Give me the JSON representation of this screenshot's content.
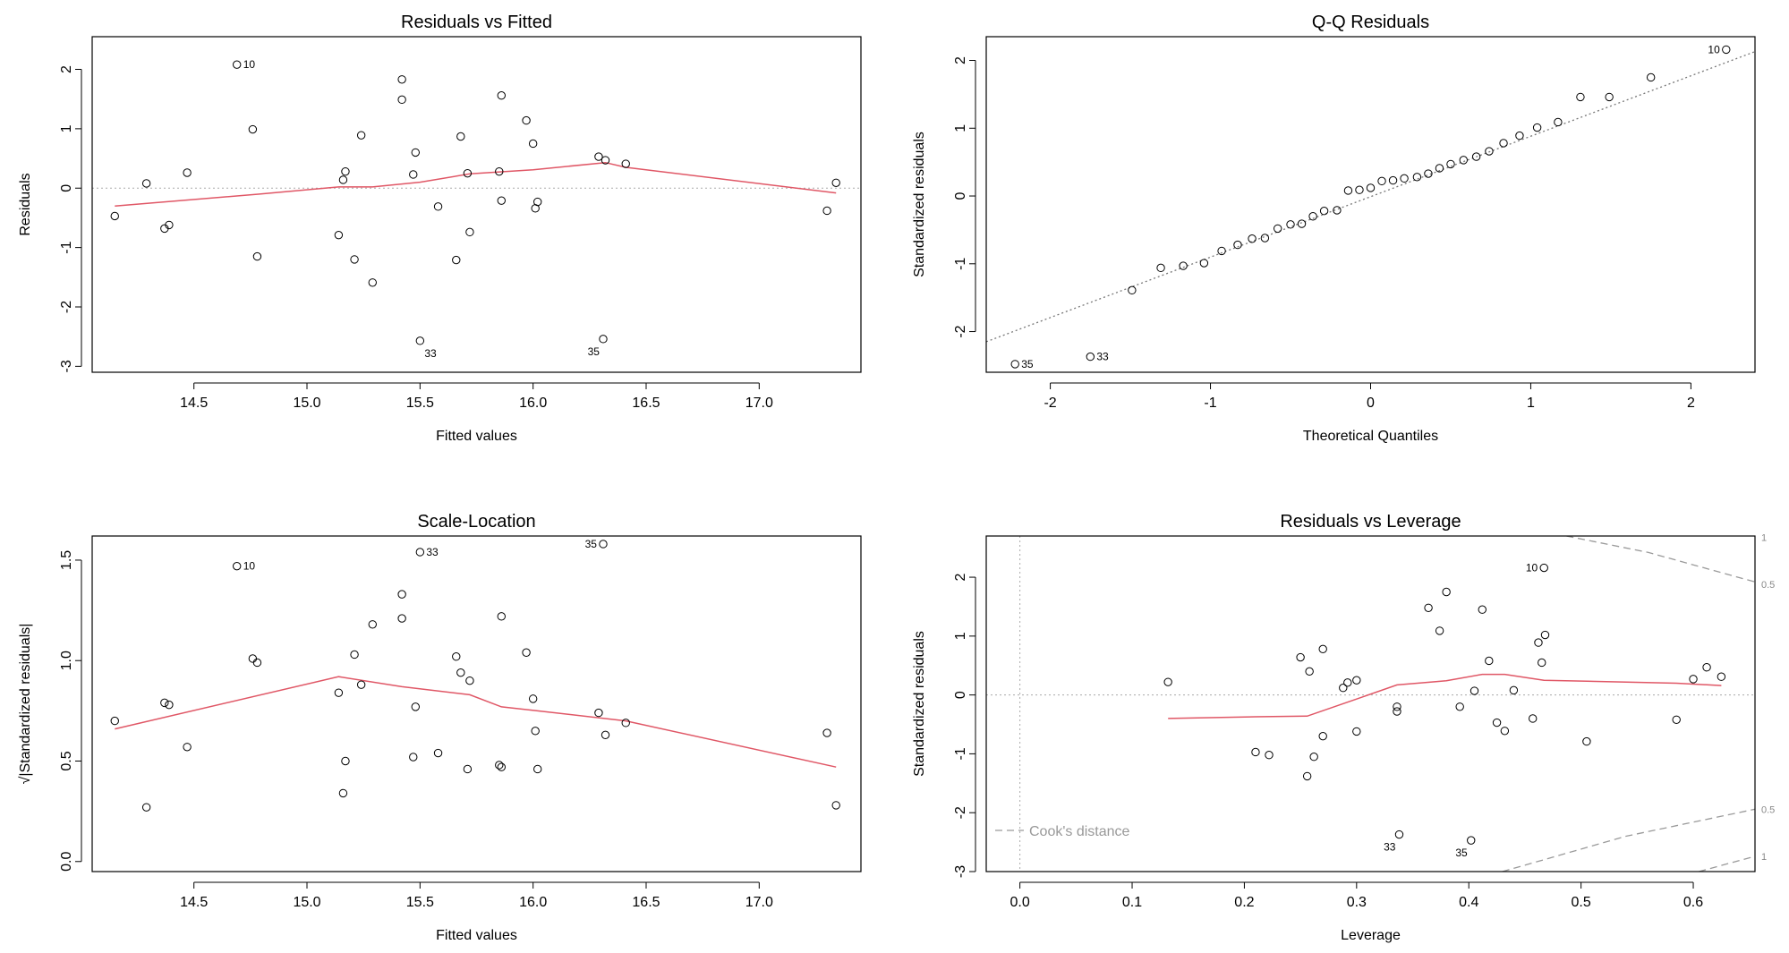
{
  "chart_data": [
    {
      "type": "scatter",
      "title": "Residuals vs Fitted",
      "xlabel": "Fitted values",
      "ylabel": "Residuals",
      "xlim": [
        14.05,
        17.45
      ],
      "ylim": [
        -3.1,
        2.55
      ],
      "xticks": [
        14.5,
        15.0,
        15.5,
        16.0,
        16.5,
        17.0
      ],
      "xtick_labels": [
        "14.5",
        "15.0",
        "15.5",
        "16.0",
        "16.5",
        "17.0"
      ],
      "yticks": [
        -3,
        -2,
        -1,
        0,
        1,
        2
      ],
      "ytick_labels": [
        "-3",
        "-2",
        "-1",
        "0",
        "1",
        "2"
      ],
      "refline_y": 0,
      "points": [
        [
          14.15,
          -0.47
        ],
        [
          14.29,
          0.08
        ],
        [
          14.37,
          -0.68
        ],
        [
          14.39,
          -0.62
        ],
        [
          14.47,
          0.26
        ],
        [
          14.69,
          2.08
        ],
        [
          14.76,
          0.99
        ],
        [
          14.78,
          -1.15
        ],
        [
          15.14,
          -0.79
        ],
        [
          15.16,
          0.14
        ],
        [
          15.17,
          0.28
        ],
        [
          15.21,
          -1.2
        ],
        [
          15.24,
          0.89
        ],
        [
          15.29,
          -1.59
        ],
        [
          15.42,
          1.83
        ],
        [
          15.42,
          1.49
        ],
        [
          15.47,
          0.23
        ],
        [
          15.48,
          0.6
        ],
        [
          15.5,
          -2.57
        ],
        [
          15.58,
          -0.31
        ],
        [
          15.66,
          -1.21
        ],
        [
          15.68,
          0.87
        ],
        [
          15.71,
          0.25
        ],
        [
          15.72,
          -0.74
        ],
        [
          15.85,
          0.28
        ],
        [
          15.86,
          1.56
        ],
        [
          15.86,
          -0.21
        ],
        [
          15.97,
          1.14
        ],
        [
          16.0,
          0.75
        ],
        [
          16.01,
          -0.34
        ],
        [
          16.02,
          -0.23
        ],
        [
          16.29,
          0.53
        ],
        [
          16.32,
          0.47
        ],
        [
          16.31,
          -2.54
        ],
        [
          16.41,
          0.41
        ],
        [
          17.3,
          -0.38
        ],
        [
          17.34,
          0.09
        ]
      ],
      "point_labels": [
        {
          "index": 5,
          "text": "10",
          "pos": "right"
        },
        {
          "index": 18,
          "text": "33",
          "pos": "below-right"
        },
        {
          "index": 33,
          "text": "35",
          "pos": "below-left"
        }
      ],
      "smooth": [
        [
          14.15,
          -0.3
        ],
        [
          14.79,
          -0.1
        ],
        [
          15.14,
          0.02
        ],
        [
          15.29,
          0.02
        ],
        [
          15.5,
          0.1
        ],
        [
          15.72,
          0.24
        ],
        [
          16.0,
          0.31
        ],
        [
          16.32,
          0.43
        ],
        [
          16.41,
          0.35
        ],
        [
          17.34,
          -0.08
        ]
      ]
    },
    {
      "type": "scatter",
      "title": "Q-Q Residuals",
      "xlabel": "Theoretical Quantiles",
      "ylabel": "Standardized residuals",
      "xlim": [
        -2.4,
        2.4
      ],
      "ylim": [
        -2.6,
        2.35
      ],
      "xticks": [
        -2,
        -1,
        0,
        1,
        2
      ],
      "xtick_labels": [
        "-2",
        "-1",
        "0",
        "1",
        "2"
      ],
      "yticks": [
        -2,
        -1,
        0,
        1,
        2
      ],
      "ytick_labels": [
        "-2",
        "-1",
        "0",
        "1",
        "2"
      ],
      "qq_line": [
        [
          -2.4,
          -2.15
        ],
        [
          2.4,
          2.13
        ]
      ],
      "points": [
        [
          -2.22,
          -2.48
        ],
        [
          -1.75,
          -2.37
        ],
        [
          -1.49,
          -1.39
        ],
        [
          -1.31,
          -1.06
        ],
        [
          -1.17,
          -1.03
        ],
        [
          -1.04,
          -0.99
        ],
        [
          -0.93,
          -0.81
        ],
        [
          -0.83,
          -0.72
        ],
        [
          -0.74,
          -0.63
        ],
        [
          -0.66,
          -0.62
        ],
        [
          -0.58,
          -0.48
        ],
        [
          -0.5,
          -0.42
        ],
        [
          -0.43,
          -0.41
        ],
        [
          -0.36,
          -0.3
        ],
        [
          -0.29,
          -0.22
        ],
        [
          -0.21,
          -0.21
        ],
        [
          -0.14,
          0.08
        ],
        [
          -0.07,
          0.09
        ],
        [
          0.0,
          0.12
        ],
        [
          0.07,
          0.22
        ],
        [
          0.14,
          0.23
        ],
        [
          0.21,
          0.26
        ],
        [
          0.29,
          0.28
        ],
        [
          0.36,
          0.33
        ],
        [
          0.43,
          0.41
        ],
        [
          0.5,
          0.47
        ],
        [
          0.58,
          0.53
        ],
        [
          0.66,
          0.58
        ],
        [
          0.74,
          0.66
        ],
        [
          0.83,
          0.78
        ],
        [
          0.93,
          0.89
        ],
        [
          1.04,
          1.01
        ],
        [
          1.17,
          1.09
        ],
        [
          1.31,
          1.46
        ],
        [
          1.49,
          1.46
        ],
        [
          1.75,
          1.75
        ],
        [
          2.22,
          2.16
        ]
      ],
      "point_labels": [
        {
          "index": 36,
          "text": "10",
          "pos": "left"
        },
        {
          "index": 0,
          "text": "35",
          "pos": "right"
        },
        {
          "index": 1,
          "text": "33",
          "pos": "right"
        }
      ]
    },
    {
      "type": "scatter",
      "title": "Scale-Location",
      "xlabel": "Fitted values",
      "ylabel": "√|Standardized residuals|",
      "xlim": [
        14.05,
        17.45
      ],
      "ylim": [
        -0.05,
        1.62
      ],
      "xticks": [
        14.5,
        15.0,
        15.5,
        16.0,
        16.5,
        17.0
      ],
      "xtick_labels": [
        "14.5",
        "15.0",
        "15.5",
        "16.0",
        "16.5",
        "17.0"
      ],
      "yticks": [
        0.0,
        0.5,
        1.0,
        1.5
      ],
      "ytick_labels": [
        "0.0",
        "0.5",
        "1.0",
        "1.5"
      ],
      "points": [
        [
          14.15,
          0.7
        ],
        [
          14.29,
          0.27
        ],
        [
          14.37,
          0.79
        ],
        [
          14.39,
          0.78
        ],
        [
          14.47,
          0.57
        ],
        [
          14.69,
          1.47
        ],
        [
          14.76,
          1.01
        ],
        [
          14.78,
          0.99
        ],
        [
          15.14,
          0.84
        ],
        [
          15.16,
          0.34
        ],
        [
          15.17,
          0.5
        ],
        [
          15.21,
          1.03
        ],
        [
          15.24,
          0.88
        ],
        [
          15.29,
          1.18
        ],
        [
          15.42,
          1.33
        ],
        [
          15.42,
          1.21
        ],
        [
          15.47,
          0.52
        ],
        [
          15.48,
          0.77
        ],
        [
          15.5,
          1.54
        ],
        [
          15.58,
          0.54
        ],
        [
          15.66,
          1.02
        ],
        [
          15.68,
          0.94
        ],
        [
          15.71,
          0.46
        ],
        [
          15.72,
          0.9
        ],
        [
          15.85,
          0.48
        ],
        [
          15.86,
          1.22
        ],
        [
          15.86,
          0.47
        ],
        [
          15.97,
          1.04
        ],
        [
          16.0,
          0.81
        ],
        [
          16.01,
          0.65
        ],
        [
          16.02,
          0.46
        ],
        [
          16.29,
          0.74
        ],
        [
          16.32,
          0.63
        ],
        [
          16.31,
          1.58
        ],
        [
          16.41,
          0.69
        ],
        [
          17.3,
          0.64
        ],
        [
          17.34,
          0.28
        ]
      ],
      "point_labels": [
        {
          "index": 5,
          "text": "10",
          "pos": "right"
        },
        {
          "index": 18,
          "text": "33",
          "pos": "right"
        },
        {
          "index": 33,
          "text": "35",
          "pos": "left"
        }
      ],
      "smooth": [
        [
          14.15,
          0.66
        ],
        [
          15.14,
          0.92
        ],
        [
          15.42,
          0.87
        ],
        [
          15.72,
          0.83
        ],
        [
          15.86,
          0.77
        ],
        [
          16.02,
          0.75
        ],
        [
          16.41,
          0.7
        ],
        [
          17.34,
          0.47
        ]
      ]
    },
    {
      "type": "scatter",
      "title": "Residuals vs Leverage",
      "xlabel": "Leverage",
      "ylabel": "Standardized residuals",
      "xlim": [
        -0.03,
        0.655
      ],
      "ylim": [
        -3.0,
        2.7
      ],
      "xticks": [
        0.0,
        0.1,
        0.2,
        0.3,
        0.4,
        0.5,
        0.6
      ],
      "xtick_labels": [
        "0.0",
        "0.1",
        "0.2",
        "0.3",
        "0.4",
        "0.5",
        "0.6"
      ],
      "yticks": [
        -3,
        -2,
        -1,
        0,
        1,
        2
      ],
      "ytick_labels": [
        "-3",
        "-2",
        "-1",
        "0",
        "1",
        "2"
      ],
      "refline_y": 0,
      "refline_x": 0,
      "points": [
        [
          0.132,
          0.22
        ],
        [
          0.21,
          -0.97
        ],
        [
          0.222,
          -1.02
        ],
        [
          0.25,
          0.64
        ],
        [
          0.258,
          0.4
        ],
        [
          0.256,
          -1.38
        ],
        [
          0.262,
          -1.05
        ],
        [
          0.27,
          0.78
        ],
        [
          0.27,
          -0.7
        ],
        [
          0.288,
          0.12
        ],
        [
          0.292,
          0.21
        ],
        [
          0.3,
          0.25
        ],
        [
          0.3,
          -0.62
        ],
        [
          0.336,
          -0.2
        ],
        [
          0.336,
          -0.28
        ],
        [
          0.338,
          -2.37
        ],
        [
          0.364,
          1.48
        ],
        [
          0.374,
          1.09
        ],
        [
          0.38,
          1.75
        ],
        [
          0.392,
          -0.2
        ],
        [
          0.402,
          -2.47
        ],
        [
          0.405,
          0.07
        ],
        [
          0.412,
          1.45
        ],
        [
          0.418,
          0.58
        ],
        [
          0.425,
          -0.47
        ],
        [
          0.432,
          -0.61
        ],
        [
          0.44,
          0.08
        ],
        [
          0.457,
          -0.4
        ],
        [
          0.462,
          0.89
        ],
        [
          0.465,
          0.55
        ],
        [
          0.468,
          1.02
        ],
        [
          0.467,
          2.16
        ],
        [
          0.505,
          -0.79
        ],
        [
          0.585,
          -0.42
        ],
        [
          0.6,
          0.27
        ],
        [
          0.612,
          0.47
        ],
        [
          0.625,
          0.31
        ]
      ],
      "point_labels": [
        {
          "index": 31,
          "text": "10",
          "pos": "left"
        },
        {
          "index": 15,
          "text": "33",
          "pos": "below-left"
        },
        {
          "index": 20,
          "text": "35",
          "pos": "below-left"
        }
      ],
      "smooth": [
        [
          0.132,
          -0.4
        ],
        [
          0.21,
          -0.37
        ],
        [
          0.256,
          -0.36
        ],
        [
          0.3,
          -0.07
        ],
        [
          0.336,
          0.17
        ],
        [
          0.38,
          0.24
        ],
        [
          0.412,
          0.35
        ],
        [
          0.432,
          0.35
        ],
        [
          0.467,
          0.25
        ],
        [
          0.585,
          0.2
        ],
        [
          0.625,
          0.16
        ]
      ],
      "cooks_labels": [
        {
          "text": "1",
          "y": 2.68
        },
        {
          "text": "0.5",
          "y": 1.88
        },
        {
          "text": "0.5",
          "y": -1.94
        },
        {
          "text": "1",
          "y": -2.74
        }
      ],
      "cooks_curves": [
        [
          [
            0.487,
            2.7
          ],
          [
            0.56,
            2.42
          ],
          [
            0.655,
            1.92
          ]
        ],
        [
          [
            0.43,
            -3.0
          ],
          [
            0.54,
            -2.4
          ],
          [
            0.655,
            -1.94
          ]
        ],
        [
          [
            0.605,
            -3.0
          ],
          [
            0.655,
            -2.74
          ]
        ]
      ],
      "legend": {
        "label": "Cook's distance",
        "position": "bottom-left"
      }
    }
  ],
  "colors": {
    "smooth": "#E05766",
    "refline": "#AAAAAA",
    "points": "#000000",
    "cooks": "#9A9A9A"
  }
}
